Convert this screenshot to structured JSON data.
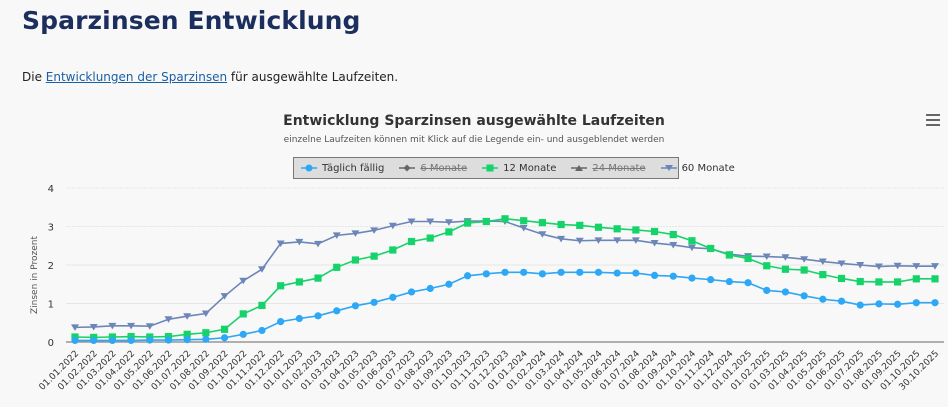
{
  "page": {
    "title": "Sparzinsen Entwicklung",
    "intro_prefix": "Die ",
    "intro_link": "Entwicklungen der Sparzinsen",
    "intro_suffix": " für ausgewählte Laufzeiten."
  },
  "chart_menu": {
    "icon": "hamburger-menu-icon"
  },
  "chart_data": {
    "type": "line",
    "title": "Entwicklung Sparzinsen ausgewählte Laufzeiten",
    "subtitle": "einzelne Laufzeiten können mit Klick auf die Legende ein- und ausgeblendet werden",
    "xlabel": "",
    "ylabel": "Zinsen in Prozent",
    "ylim": [
      0,
      4
    ],
    "yticks": [
      "0",
      "1",
      "2",
      "3",
      "4"
    ],
    "grid": true,
    "legend_position": "top-center",
    "categories": [
      "01.01.2022",
      "01.02.2022",
      "01.03.2022",
      "01.04.2022",
      "01.05.2022",
      "01.06.2022",
      "01.07.2022",
      "01.08.2022",
      "01.09.2022",
      "01.10.2022",
      "01.11.2022",
      "01.12.2022",
      "01.01.2023",
      "01.02.2023",
      "01.03.2023",
      "01.04.2023",
      "01.05.2023",
      "01.06.2023",
      "01.07.2023",
      "01.08.2023",
      "01.09.2023",
      "01.10.2023",
      "01.11.2023",
      "01.12.2023",
      "01.01.2024",
      "01.02.2024",
      "01.03.2024",
      "01.04.2024",
      "01.05.2024",
      "01.06.2024",
      "01.07.2024",
      "01.08.2024",
      "01.09.2024",
      "01.10.2024",
      "01.11.2024",
      "01.12.2024",
      "01.01.2025",
      "01.02.2025",
      "01.03.2025",
      "01.04.2025",
      "01.05.2025",
      "01.06.2025",
      "01.07.2025",
      "01.08.2025",
      "01.09.2025",
      "01.10.2025",
      "30.10.2025"
    ],
    "series": [
      {
        "name": "Täglich fällig",
        "visible": true,
        "color": "#2ea7f5",
        "marker": "circle",
        "values": [
          0.04,
          0.04,
          0.04,
          0.04,
          0.05,
          0.05,
          0.06,
          0.07,
          0.11,
          0.2,
          0.3,
          0.53,
          0.61,
          0.68,
          0.81,
          0.94,
          1.03,
          1.16,
          1.3,
          1.39,
          1.5,
          1.72,
          1.77,
          1.81,
          1.81,
          1.77,
          1.81,
          1.81,
          1.81,
          1.79,
          1.79,
          1.73,
          1.71,
          1.66,
          1.62,
          1.57,
          1.54,
          1.34,
          1.3,
          1.2,
          1.11,
          1.06,
          0.96,
          0.99,
          0.98,
          1.02,
          1.02
        ]
      },
      {
        "name": "6 Monate",
        "visible": false,
        "color": "#555555",
        "marker": "diamond",
        "values": []
      },
      {
        "name": "12 Monate",
        "visible": true,
        "color": "#15d36a",
        "marker": "square",
        "values": [
          0.13,
          0.12,
          0.13,
          0.14,
          0.13,
          0.14,
          0.2,
          0.24,
          0.33,
          0.73,
          0.95,
          1.46,
          1.56,
          1.66,
          1.94,
          2.13,
          2.23,
          2.39,
          2.61,
          2.7,
          2.86,
          3.09,
          3.13,
          3.2,
          3.15,
          3.1,
          3.05,
          3.03,
          2.98,
          2.94,
          2.91,
          2.87,
          2.79,
          2.63,
          2.43,
          2.26,
          2.17,
          1.98,
          1.89,
          1.87,
          1.75,
          1.65,
          1.57,
          1.56,
          1.56,
          1.64,
          1.64
        ]
      },
      {
        "name": "24 Monate",
        "visible": false,
        "color": "#555555",
        "marker": "triangle",
        "values": []
      },
      {
        "name": "60 Monate",
        "visible": true,
        "color": "#6c86b8",
        "marker": "triangle-down",
        "values": [
          0.38,
          0.39,
          0.42,
          0.42,
          0.41,
          0.59,
          0.67,
          0.74,
          1.19,
          1.59,
          1.89,
          2.56,
          2.6,
          2.55,
          2.77,
          2.82,
          2.9,
          3.02,
          3.13,
          3.13,
          3.11,
          3.14,
          3.14,
          3.13,
          2.96,
          2.8,
          2.68,
          2.63,
          2.64,
          2.64,
          2.64,
          2.57,
          2.52,
          2.45,
          2.42,
          2.28,
          2.23,
          2.22,
          2.2,
          2.15,
          2.09,
          2.04,
          2.0,
          1.96,
          1.98,
          1.97,
          1.97
        ]
      }
    ]
  }
}
